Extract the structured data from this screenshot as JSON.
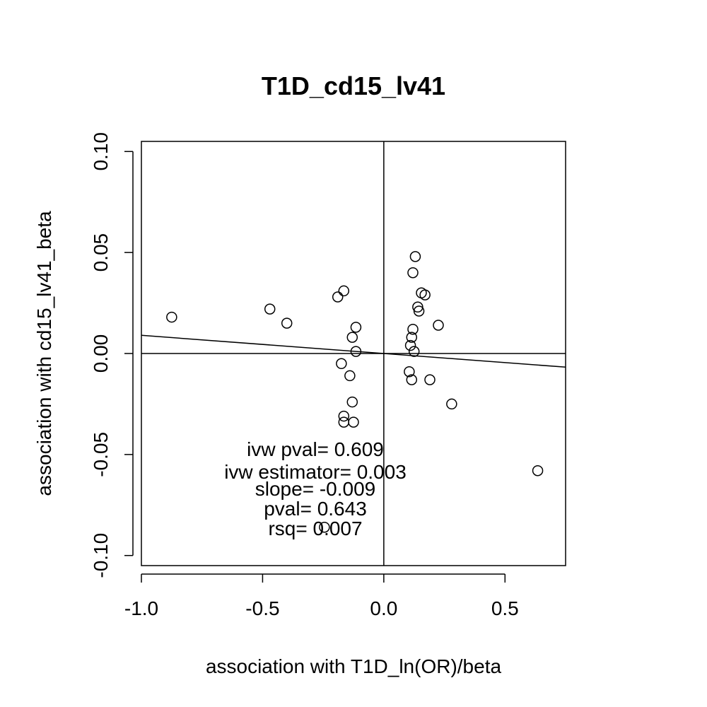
{
  "chart_data": {
    "type": "scatter",
    "title": "T1D_cd15_lv41",
    "xlabel": "association with T1D_ln(OR)/beta",
    "ylabel": "association with cd15_lv41_beta",
    "xlim": [
      -1.0,
      0.75
    ],
    "ylim": [
      -0.105,
      0.105
    ],
    "xticks": [
      -1.0,
      -0.5,
      0.0,
      0.5
    ],
    "xtick_labels": [
      "-1.0",
      "-0.5",
      "0.0",
      "0.5"
    ],
    "yticks": [
      -0.1,
      -0.05,
      0.0,
      0.05,
      0.1
    ],
    "ytick_labels": [
      "-0.10",
      "-0.05",
      "0.00",
      "0.05",
      "0.10"
    ],
    "reference_lines": {
      "x": 0,
      "y": 0
    },
    "fit_line": {
      "slope": -0.009,
      "intercept": 0.0
    },
    "points": [
      {
        "x": -0.875,
        "y": 0.018
      },
      {
        "x": -0.47,
        "y": 0.022
      },
      {
        "x": -0.4,
        "y": 0.015
      },
      {
        "x": -0.19,
        "y": 0.028
      },
      {
        "x": -0.165,
        "y": 0.031
      },
      {
        "x": -0.115,
        "y": 0.013
      },
      {
        "x": -0.13,
        "y": 0.008
      },
      {
        "x": -0.115,
        "y": 0.001
      },
      {
        "x": -0.175,
        "y": -0.005
      },
      {
        "x": -0.14,
        "y": -0.011
      },
      {
        "x": -0.13,
        "y": -0.024
      },
      {
        "x": -0.165,
        "y": -0.031
      },
      {
        "x": -0.165,
        "y": -0.034
      },
      {
        "x": -0.125,
        "y": -0.034
      },
      {
        "x": -0.245,
        "y": -0.086
      },
      {
        "x": 0.13,
        "y": 0.048
      },
      {
        "x": 0.12,
        "y": 0.04
      },
      {
        "x": 0.155,
        "y": 0.03
      },
      {
        "x": 0.17,
        "y": 0.029
      },
      {
        "x": 0.14,
        "y": 0.023
      },
      {
        "x": 0.145,
        "y": 0.021
      },
      {
        "x": 0.225,
        "y": 0.014
      },
      {
        "x": 0.12,
        "y": 0.012
      },
      {
        "x": 0.115,
        "y": 0.008
      },
      {
        "x": 0.11,
        "y": 0.004
      },
      {
        "x": 0.125,
        "y": 0.001
      },
      {
        "x": 0.105,
        "y": -0.009
      },
      {
        "x": 0.115,
        "y": -0.013
      },
      {
        "x": 0.19,
        "y": -0.013
      },
      {
        "x": 0.28,
        "y": -0.025
      },
      {
        "x": 0.635,
        "y": -0.058
      }
    ],
    "annotations": [
      "ivw pval= 0.609",
      "ivw estimator= 0.003",
      "slope= -0.009",
      "pval= 0.643",
      "rsq= 0.007"
    ]
  }
}
